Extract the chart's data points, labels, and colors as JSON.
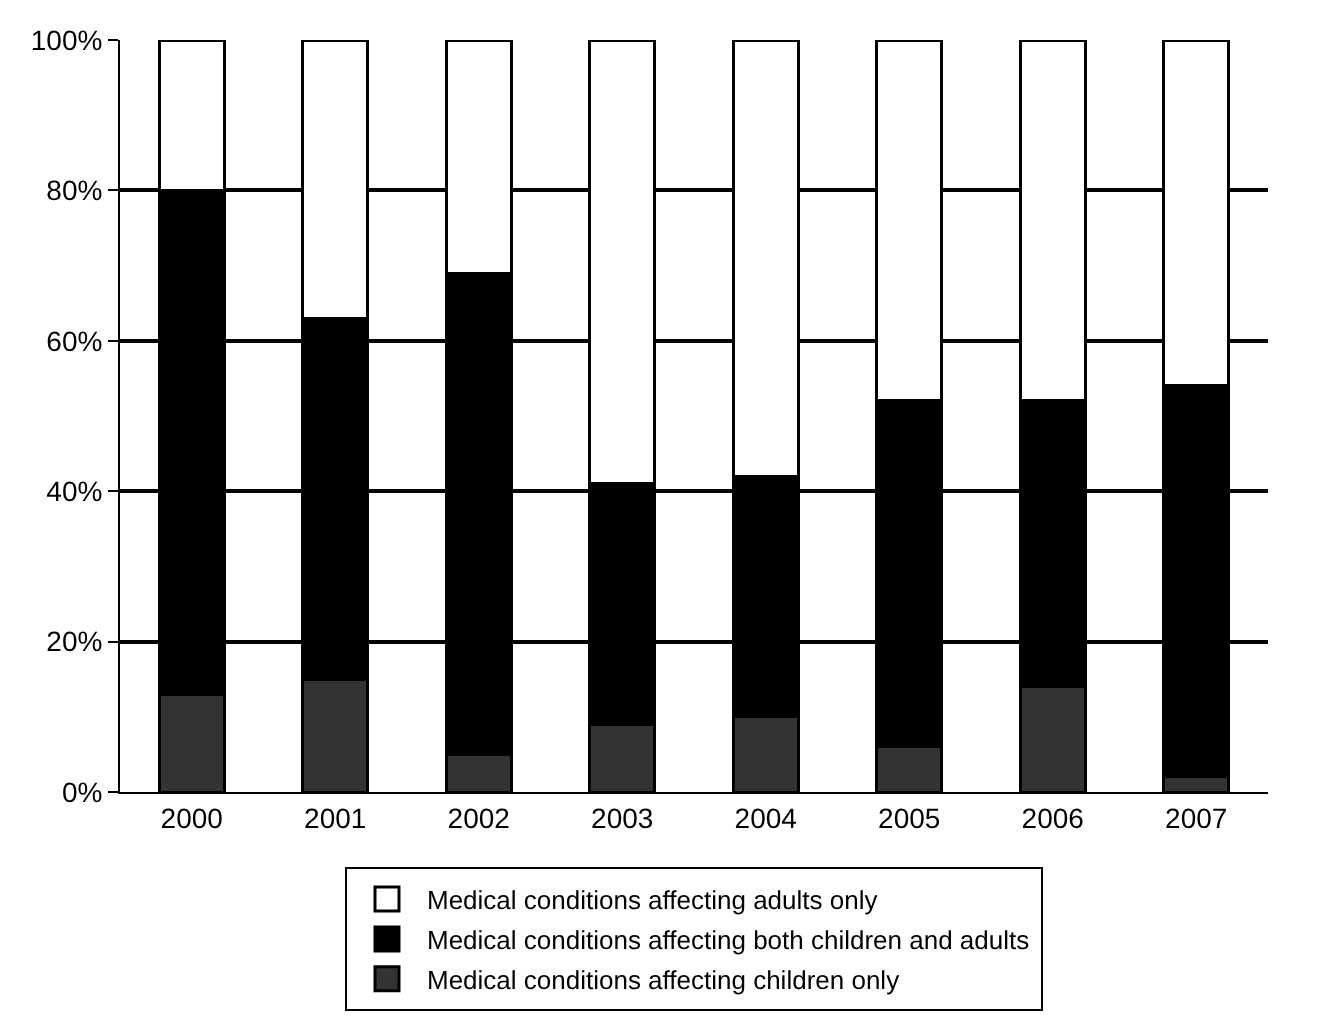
{
  "chart_data": {
    "type": "bar",
    "stacked": true,
    "categories": [
      "2000",
      "2001",
      "2002",
      "2003",
      "2004",
      "2005",
      "2006",
      "2007"
    ],
    "series": [
      {
        "name": "Medical conditions affecting children only",
        "color": "#333333",
        "values": [
          13,
          15,
          5,
          9,
          10,
          6,
          14,
          2
        ]
      },
      {
        "name": "Medical conditions affecting both children and adults",
        "color": "#000000",
        "values": [
          67,
          48,
          64,
          32,
          32,
          46,
          38,
          52
        ]
      },
      {
        "name": "Medical conditions affecting adults only",
        "color": "#ffffff",
        "values": [
          20,
          37,
          31,
          59,
          58,
          48,
          48,
          46
        ]
      }
    ],
    "ylim": [
      0,
      100
    ],
    "yticks": [
      {
        "value": 0,
        "label": "0%"
      },
      {
        "value": 20,
        "label": "20%"
      },
      {
        "value": 40,
        "label": "40%"
      },
      {
        "value": 60,
        "label": "60%"
      },
      {
        "value": 80,
        "label": "80%"
      },
      {
        "value": 100,
        "label": "100%"
      }
    ],
    "grid": "y",
    "legend": "bottom"
  }
}
